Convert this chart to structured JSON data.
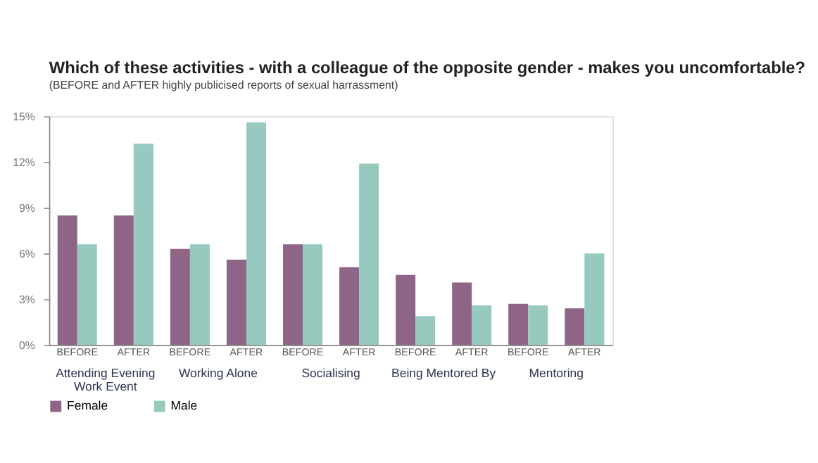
{
  "chart_data": {
    "type": "bar",
    "title": "Which of these activities - with a colleague of the opposite gender - makes you uncomfortable?",
    "subtitle": "(BEFORE and AFTER highly publicised reports of sexual harrassment)",
    "categories": [
      "BEFORE",
      "AFTER",
      "BEFORE",
      "AFTER",
      "BEFORE",
      "AFTER",
      "BEFORE",
      "AFTER",
      "BEFORE",
      "AFTER"
    ],
    "annotations": [
      "Attending Evening Work Event",
      "Working Alone",
      "Socialising",
      "Being Mentored By",
      "Mentoring"
    ],
    "series": [
      {
        "name": "Female",
        "color": "#8e6587",
        "values": [
          8.5,
          8.5,
          6.3,
          5.6,
          6.6,
          5.1,
          4.6,
          4.1,
          2.7,
          2.4
        ]
      },
      {
        "name": "Male",
        "color": "#97c9bf",
        "values": [
          6.6,
          13.2,
          6.6,
          14.6,
          6.6,
          11.9,
          1.9,
          2.6,
          2.6,
          6.0
        ]
      }
    ],
    "ylim": [
      0,
      15
    ],
    "yticks": [
      {
        "value": 0,
        "label": "0%"
      },
      {
        "value": 3,
        "label": "3%"
      },
      {
        "value": 6,
        "label": "6%"
      },
      {
        "value": 9,
        "label": "9%"
      },
      {
        "value": 12,
        "label": "12%"
      },
      {
        "value": 15,
        "label": "15%"
      }
    ],
    "grid": false,
    "legend": "bottom"
  }
}
